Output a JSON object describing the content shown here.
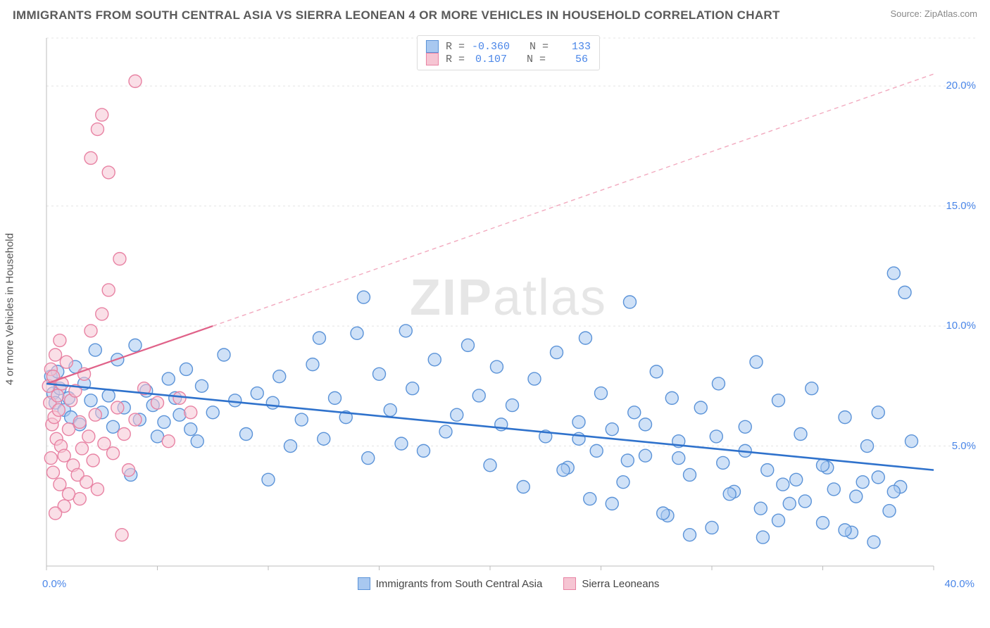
{
  "header": {
    "title": "IMMIGRANTS FROM SOUTH CENTRAL ASIA VS SIERRA LEONEAN 4 OR MORE VEHICLES IN HOUSEHOLD CORRELATION CHART",
    "source": "Source: ZipAtlas.com"
  },
  "watermark": {
    "zip": "ZIP",
    "atlas": "atlas"
  },
  "chart": {
    "type": "scatter",
    "y_axis_label": "4 or more Vehicles in Household",
    "xlim": [
      0,
      40
    ],
    "ylim": [
      0,
      22
    ],
    "x_ticks": [
      0,
      40
    ],
    "x_tick_labels": [
      "0.0%",
      "40.0%"
    ],
    "y_ticks": [
      5,
      10,
      15,
      20
    ],
    "y_tick_labels": [
      "5.0%",
      "10.0%",
      "15.0%",
      "20.0%"
    ],
    "grid_color": "#e4e4e4",
    "axis_color": "#bcbcbc",
    "background_color": "#ffffff",
    "marker_radius": 9,
    "marker_stroke_width": 1.4,
    "colors": {
      "blue_fill": "#a8c8f0",
      "blue_stroke": "#5b93d8",
      "blue_line": "#2f72cc",
      "pink_fill": "#f6c5d3",
      "pink_stroke": "#e882a3",
      "pink_line": "#e06289",
      "label_color": "#4a86e8"
    },
    "correlation_box": {
      "series": [
        {
          "swatch_fill": "#a8c8f0",
          "swatch_stroke": "#5b93d8",
          "r": "-0.360",
          "n": "133"
        },
        {
          "swatch_fill": "#f6c5d3",
          "swatch_stroke": "#e882a3",
          "r": " 0.107",
          "n": " 56"
        }
      ]
    },
    "bottom_legend": {
      "items": [
        {
          "swatch_fill": "#a8c8f0",
          "swatch_stroke": "#5b93d8",
          "label": "Immigrants from South Central Asia"
        },
        {
          "swatch_fill": "#f6c5d3",
          "swatch_stroke": "#e882a3",
          "label": "Sierra Leoneans"
        }
      ]
    },
    "trend_lines": {
      "blue": {
        "x1": 0,
        "y1": 7.6,
        "x2": 40,
        "y2": 4.0,
        "color": "#2f72cc",
        "width": 2.6
      },
      "pink_solid": {
        "x1": 0,
        "y1": 7.6,
        "x2": 7.5,
        "y2": 10.0,
        "color": "#e06289",
        "width": 2.2
      },
      "pink_dashed": {
        "x1": 7.5,
        "y1": 10.0,
        "x2": 40,
        "y2": 20.5,
        "color": "#f2aabf",
        "width": 1.4,
        "dash": "6 5"
      }
    },
    "points_blue": [
      [
        0.2,
        7.9
      ],
      [
        0.3,
        7.2
      ],
      [
        0.4,
        6.8
      ],
      [
        0.5,
        8.1
      ],
      [
        0.6,
        7.4
      ],
      [
        0.8,
        6.5
      ],
      [
        1.0,
        7.0
      ],
      [
        1.1,
        6.2
      ],
      [
        1.3,
        8.3
      ],
      [
        1.5,
        5.9
      ],
      [
        1.7,
        7.6
      ],
      [
        2.0,
        6.9
      ],
      [
        2.2,
        9.0
      ],
      [
        2.5,
        6.4
      ],
      [
        2.8,
        7.1
      ],
      [
        3.0,
        5.8
      ],
      [
        3.2,
        8.6
      ],
      [
        3.5,
        6.6
      ],
      [
        3.8,
        3.8
      ],
      [
        4.0,
        9.2
      ],
      [
        4.2,
        6.1
      ],
      [
        4.5,
        7.3
      ],
      [
        4.8,
        6.7
      ],
      [
        5.0,
        5.4
      ],
      [
        5.3,
        6.0
      ],
      [
        5.5,
        7.8
      ],
      [
        5.8,
        7.0
      ],
      [
        6.0,
        6.3
      ],
      [
        6.3,
        8.2
      ],
      [
        6.5,
        5.7
      ],
      [
        6.8,
        5.2
      ],
      [
        7.0,
        7.5
      ],
      [
        7.5,
        6.4
      ],
      [
        8.0,
        8.8
      ],
      [
        8.5,
        6.9
      ],
      [
        9.0,
        5.5
      ],
      [
        9.5,
        7.2
      ],
      [
        10.0,
        3.6
      ],
      [
        10.2,
        6.8
      ],
      [
        10.5,
        7.9
      ],
      [
        11.0,
        5.0
      ],
      [
        11.5,
        6.1
      ],
      [
        12.0,
        8.4
      ],
      [
        12.3,
        9.5
      ],
      [
        12.5,
        5.3
      ],
      [
        13.0,
        7.0
      ],
      [
        13.5,
        6.2
      ],
      [
        14.0,
        9.7
      ],
      [
        14.3,
        11.2
      ],
      [
        14.5,
        4.5
      ],
      [
        15.0,
        8.0
      ],
      [
        15.5,
        6.5
      ],
      [
        16.0,
        5.1
      ],
      [
        16.2,
        9.8
      ],
      [
        16.5,
        7.4
      ],
      [
        17.0,
        4.8
      ],
      [
        17.5,
        8.6
      ],
      [
        18.0,
        5.6
      ],
      [
        18.5,
        6.3
      ],
      [
        19.0,
        9.2
      ],
      [
        19.5,
        7.1
      ],
      [
        20.0,
        4.2
      ],
      [
        20.3,
        8.3
      ],
      [
        20.5,
        5.9
      ],
      [
        21.0,
        6.7
      ],
      [
        21.5,
        3.3
      ],
      [
        22.0,
        7.8
      ],
      [
        22.5,
        5.4
      ],
      [
        23.0,
        8.9
      ],
      [
        23.5,
        4.1
      ],
      [
        24.0,
        6.0
      ],
      [
        24.3,
        9.5
      ],
      [
        24.5,
        2.8
      ],
      [
        25.0,
        7.2
      ],
      [
        25.5,
        5.7
      ],
      [
        26.0,
        3.5
      ],
      [
        26.3,
        11.0
      ],
      [
        26.5,
        6.4
      ],
      [
        27.0,
        4.6
      ],
      [
        27.5,
        8.1
      ],
      [
        28.0,
        2.1
      ],
      [
        28.2,
        7.0
      ],
      [
        28.5,
        5.2
      ],
      [
        29.0,
        3.8
      ],
      [
        29.5,
        6.6
      ],
      [
        30.0,
        1.6
      ],
      [
        30.3,
        7.6
      ],
      [
        30.5,
        4.3
      ],
      [
        31.0,
        3.1
      ],
      [
        31.5,
        5.8
      ],
      [
        32.0,
        8.5
      ],
      [
        32.3,
        1.2
      ],
      [
        32.5,
        4.0
      ],
      [
        33.0,
        6.9
      ],
      [
        33.2,
        3.4
      ],
      [
        33.5,
        2.6
      ],
      [
        34.0,
        5.5
      ],
      [
        34.5,
        7.4
      ],
      [
        35.0,
        1.8
      ],
      [
        35.2,
        4.1
      ],
      [
        35.5,
        3.2
      ],
      [
        36.0,
        6.2
      ],
      [
        36.3,
        1.4
      ],
      [
        36.5,
        2.9
      ],
      [
        37.0,
        5.0
      ],
      [
        37.3,
        1.0
      ],
      [
        37.5,
        3.7
      ],
      [
        38.0,
        2.3
      ],
      [
        38.2,
        12.2
      ],
      [
        38.5,
        3.3
      ],
      [
        38.7,
        11.4
      ],
      [
        39.0,
        5.2
      ],
      [
        38.2,
        3.1
      ],
      [
        37.5,
        6.4
      ],
      [
        36.8,
        3.5
      ],
      [
        36.0,
        1.5
      ],
      [
        35.0,
        4.2
      ],
      [
        34.2,
        2.7
      ],
      [
        33.8,
        3.6
      ],
      [
        33.0,
        1.9
      ],
      [
        32.2,
        2.4
      ],
      [
        31.5,
        4.8
      ],
      [
        30.8,
        3.0
      ],
      [
        30.2,
        5.4
      ],
      [
        29.0,
        1.3
      ],
      [
        28.5,
        4.5
      ],
      [
        27.8,
        2.2
      ],
      [
        27.0,
        5.9
      ],
      [
        26.2,
        4.4
      ],
      [
        25.5,
        2.6
      ],
      [
        24.8,
        4.8
      ],
      [
        24.0,
        5.3
      ],
      [
        23.3,
        4.0
      ]
    ],
    "points_pink": [
      [
        0.1,
        7.5
      ],
      [
        0.15,
        6.8
      ],
      [
        0.2,
        8.2
      ],
      [
        0.25,
        5.9
      ],
      [
        0.3,
        7.9
      ],
      [
        0.35,
        6.2
      ],
      [
        0.4,
        8.8
      ],
      [
        0.45,
        5.3
      ],
      [
        0.5,
        7.1
      ],
      [
        0.55,
        6.5
      ],
      [
        0.6,
        9.4
      ],
      [
        0.65,
        5.0
      ],
      [
        0.7,
        7.6
      ],
      [
        0.8,
        4.6
      ],
      [
        0.9,
        8.5
      ],
      [
        1.0,
        5.7
      ],
      [
        1.1,
        6.9
      ],
      [
        1.2,
        4.2
      ],
      [
        1.3,
        7.3
      ],
      [
        1.4,
        3.8
      ],
      [
        1.5,
        6.0
      ],
      [
        1.6,
        4.9
      ],
      [
        1.7,
        8.0
      ],
      [
        1.8,
        3.5
      ],
      [
        1.9,
        5.4
      ],
      [
        2.0,
        9.8
      ],
      [
        2.1,
        4.4
      ],
      [
        2.2,
        6.3
      ],
      [
        2.3,
        3.2
      ],
      [
        2.5,
        10.5
      ],
      [
        2.6,
        5.1
      ],
      [
        2.8,
        11.5
      ],
      [
        3.0,
        4.7
      ],
      [
        3.2,
        6.6
      ],
      [
        3.3,
        12.8
      ],
      [
        3.5,
        5.5
      ],
      [
        3.7,
        4.0
      ],
      [
        4.0,
        6.1
      ],
      [
        4.4,
        7.4
      ],
      [
        5.0,
        6.8
      ],
      [
        5.5,
        5.2
      ],
      [
        6.0,
        7.0
      ],
      [
        6.5,
        6.4
      ],
      [
        3.4,
        1.3
      ],
      [
        2.0,
        17.0
      ],
      [
        2.3,
        18.2
      ],
      [
        2.5,
        18.8
      ],
      [
        2.8,
        16.4
      ],
      [
        4.0,
        20.2
      ],
      [
        1.5,
        2.8
      ],
      [
        1.0,
        3.0
      ],
      [
        0.8,
        2.5
      ],
      [
        0.6,
        3.4
      ],
      [
        0.4,
        2.2
      ],
      [
        0.3,
        3.9
      ],
      [
        0.2,
        4.5
      ]
    ]
  }
}
